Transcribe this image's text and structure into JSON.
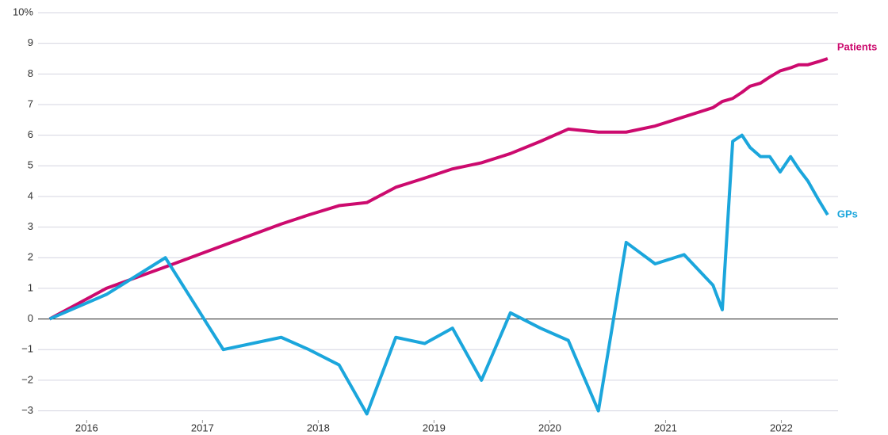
{
  "chart_data": {
    "type": "line",
    "x": [
      2015.68,
      2016.17,
      2016.68,
      2017.18,
      2017.68,
      2017.92,
      2018.18,
      2018.42,
      2018.67,
      2018.92,
      2019.16,
      2019.41,
      2019.66,
      2019.92,
      2020.16,
      2020.42,
      2020.66,
      2020.91,
      2021.16,
      2021.41,
      2021.49,
      2021.58,
      2021.66,
      2021.73,
      2021.82,
      2021.9,
      2021.99,
      2022.08,
      2022.15,
      2022.23,
      2022.32,
      2022.4
    ],
    "series": [
      {
        "name": "Patients",
        "color": "#cc0a6e",
        "values": [
          0,
          1.0,
          1.7,
          2.4,
          3.1,
          3.4,
          3.7,
          3.8,
          4.3,
          4.6,
          4.9,
          5.1,
          5.4,
          5.8,
          6.2,
          6.1,
          6.1,
          6.3,
          6.6,
          6.9,
          7.1,
          7.2,
          7.4,
          7.6,
          7.7,
          7.9,
          8.1,
          8.2,
          8.3,
          8.3,
          8.4,
          8.5
        ]
      },
      {
        "name": "GPs",
        "color": "#1ba6dc",
        "values": [
          0,
          0.8,
          2.0,
          -1.0,
          -0.6,
          -1.0,
          -1.5,
          -3.1,
          -0.6,
          -0.8,
          -0.3,
          -2.0,
          0.2,
          -0.3,
          -0.7,
          -3.0,
          2.5,
          1.8,
          2.1,
          1.1,
          0.3,
          5.8,
          6.0,
          5.6,
          5.3,
          5.3,
          4.8,
          5.3,
          4.9,
          4.5,
          3.9,
          3.4
        ]
      }
    ],
    "xlim": [
      2015.58,
      2022.49
    ],
    "xticks": [
      2016,
      2017,
      2018,
      2019,
      2020,
      2021,
      2022
    ],
    "ylim": [
      -3.4,
      10
    ],
    "yticks": [
      {
        "value": 10,
        "label": "10%"
      },
      9,
      8,
      7,
      6,
      5,
      4,
      3,
      2,
      1,
      0,
      {
        "value": -1,
        "label": "−1"
      },
      {
        "value": -2,
        "label": "−2"
      },
      {
        "value": -3,
        "label": "−3"
      }
    ],
    "grid": true
  }
}
